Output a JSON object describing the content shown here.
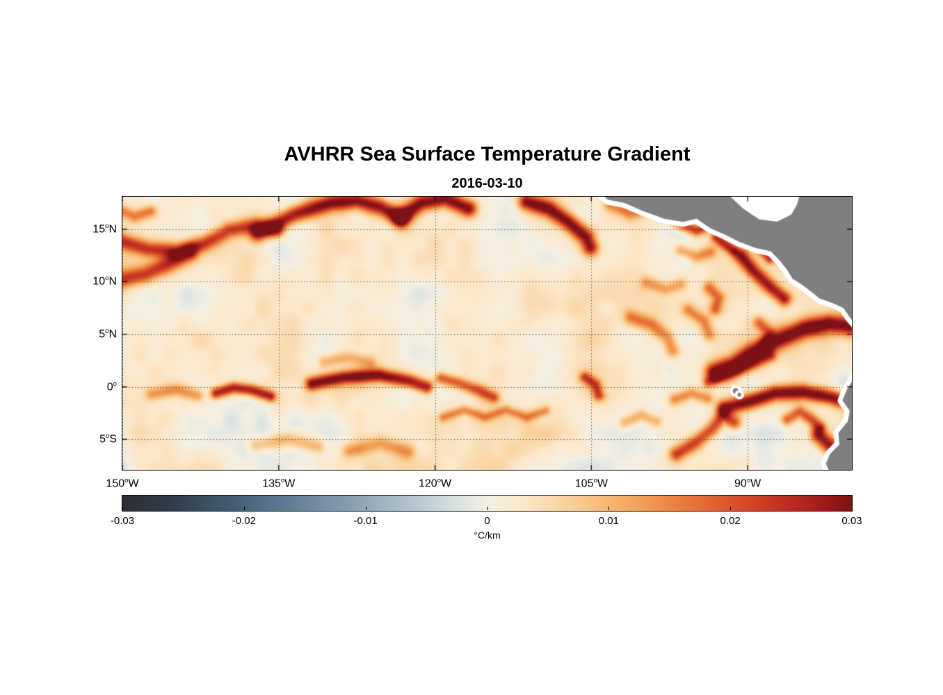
{
  "chart": {
    "title": "AVHRR Sea Surface Temperature Gradient",
    "subtitle": "2016-03-10"
  },
  "colorbar": {
    "unit": "°C/km",
    "min": -0.03,
    "max": 0.03,
    "ticks": [
      {
        "value": -0.03,
        "label": "-0.03"
      },
      {
        "value": -0.02,
        "label": "-0.02"
      },
      {
        "value": -0.01,
        "label": "-0.01"
      },
      {
        "value": 0,
        "label": "0"
      },
      {
        "value": 0.01,
        "label": "0.01"
      },
      {
        "value": 0.02,
        "label": "0.02"
      },
      {
        "value": 0.03,
        "label": "0.03"
      }
    ],
    "colormap": [
      [
        0.0,
        "#2f2f34"
      ],
      [
        0.07,
        "#333d4b"
      ],
      [
        0.14,
        "#40586f"
      ],
      [
        0.21,
        "#5a7591"
      ],
      [
        0.3,
        "#8199ad"
      ],
      [
        0.38,
        "#aabdc9"
      ],
      [
        0.45,
        "#d3dee1"
      ],
      [
        0.5,
        "#f4efe2"
      ],
      [
        0.55,
        "#fbe7c9"
      ],
      [
        0.62,
        "#f9cd95"
      ],
      [
        0.69,
        "#f5ab62"
      ],
      [
        0.76,
        "#eb8140"
      ],
      [
        0.83,
        "#dc562c"
      ],
      [
        0.9,
        "#c33123"
      ],
      [
        0.96,
        "#a01b1b"
      ],
      [
        1.0,
        "#7c1216"
      ]
    ]
  },
  "chart_data": {
    "type": "heatmap",
    "title": "AVHRR Sea Surface Temperature Gradient",
    "subtitle": "2016-03-10",
    "xlabel": "",
    "ylabel": "",
    "units": "°C/km",
    "value_range": [
      -0.03,
      0.03
    ],
    "xlim": [
      -150,
      -80
    ],
    "ylim": [
      -7.9,
      18.1
    ],
    "xticks": [
      {
        "value": -150,
        "deg": "150",
        "hemi": "W"
      },
      {
        "value": -135,
        "deg": "135",
        "hemi": "W"
      },
      {
        "value": -120,
        "deg": "120",
        "hemi": "W"
      },
      {
        "value": -105,
        "deg": "105",
        "hemi": "W"
      },
      {
        "value": -90,
        "deg": "90",
        "hemi": "W"
      }
    ],
    "yticks": [
      {
        "value": 15,
        "deg": "15",
        "hemi": "N"
      },
      {
        "value": 10,
        "deg": "10",
        "hemi": "N"
      },
      {
        "value": 5,
        "deg": "5",
        "hemi": "N"
      },
      {
        "value": 0,
        "deg": "0",
        "hemi": ""
      },
      {
        "value": -5,
        "deg": "5",
        "hemi": "S"
      }
    ],
    "grid": {
      "show": true,
      "style": "dotted",
      "color": "rgba(60,60,60,0.85)"
    },
    "background_value": 0.0018,
    "noise": {
      "amplitude": 0.0038,
      "scale_deg": 4.2,
      "amplitude2": 0.0016,
      "scale2_deg": 1.5,
      "seed": 7
    },
    "fronts": [
      {
        "path": [
          [
            -150.5,
            16.9
          ],
          [
            -148.8,
            16.2
          ],
          [
            -147.3,
            16.7
          ]
        ],
        "width_deg": 0.6,
        "peak": 0.014
      },
      {
        "path": [
          [
            -150.3,
            13.9
          ],
          [
            -147.5,
            13.1
          ],
          [
            -144.8,
            12.9
          ],
          [
            -142.2,
            13.6
          ],
          [
            -139.8,
            14.9
          ],
          [
            -137.2,
            15.4
          ],
          [
            -135.2,
            14.9
          ]
        ],
        "width_deg": 0.75,
        "peak": 0.02
      },
      {
        "path": [
          [
            -150.3,
            10.2
          ],
          [
            -147.8,
            10.7
          ],
          [
            -145.6,
            11.7
          ],
          [
            -143.6,
            12.7
          ]
        ],
        "width_deg": 0.85,
        "peak": 0.021
      },
      {
        "path": [
          [
            -137.0,
            14.6
          ],
          [
            -133.5,
            16.4
          ],
          [
            -130.0,
            17.5
          ],
          [
            -127.5,
            17.7
          ],
          [
            -125.2,
            17.1
          ],
          [
            -123.3,
            16.1
          ]
        ],
        "width_deg": 0.8,
        "peak": 0.027
      },
      {
        "path": [
          [
            -123.3,
            16.1
          ],
          [
            -121.3,
            17.5
          ],
          [
            -119.0,
            17.9
          ],
          [
            -116.8,
            17.0
          ]
        ],
        "width_deg": 0.8,
        "peak": 0.028
      },
      {
        "path": [
          [
            -111.2,
            17.6
          ],
          [
            -109.0,
            16.9
          ],
          [
            -107.2,
            15.7
          ],
          [
            -105.5,
            14.2
          ],
          [
            -105.1,
            13.3
          ]
        ],
        "width_deg": 0.8,
        "peak": 0.029
      },
      {
        "path": [
          [
            -103.2,
            17.3
          ],
          [
            -101.2,
            16.5
          ],
          [
            -99.6,
            16.9
          ]
        ],
        "width_deg": 0.6,
        "peak": 0.012
      },
      {
        "path": [
          [
            -97.6,
            16.3
          ],
          [
            -96.2,
            15.4
          ],
          [
            -94.9,
            14.9
          ],
          [
            -93.9,
            15.3
          ]
        ],
        "width_deg": 0.6,
        "peak": 0.024
      },
      {
        "path": [
          [
            -93.0,
            14.2
          ],
          [
            -92.2,
            13.6
          ],
          [
            -91.4,
            13.0
          ]
        ],
        "width_deg": 0.55,
        "peak": 0.022
      },
      {
        "path": [
          [
            -90.6,
            12.4
          ],
          [
            -89.4,
            11.0
          ],
          [
            -87.8,
            9.5
          ],
          [
            -86.5,
            8.4
          ]
        ],
        "width_deg": 0.7,
        "peak": 0.026
      },
      {
        "path": [
          [
            -88.6,
            13.0
          ],
          [
            -87.9,
            12.2
          ]
        ],
        "width_deg": 0.5,
        "peak": 0.02
      },
      {
        "path": [
          [
            -93.2,
            1.4
          ],
          [
            -91.4,
            2.1
          ],
          [
            -89.4,
            3.3
          ],
          [
            -87.0,
            4.5
          ],
          [
            -84.6,
            5.5
          ],
          [
            -82.2,
            6.0
          ],
          [
            -80.3,
            5.8
          ]
        ],
        "width_deg": 0.9,
        "peak": 0.03
      },
      {
        "path": [
          [
            -93.8,
            0.4
          ],
          [
            -91.8,
            1.1
          ],
          [
            -89.8,
            2.0
          ],
          [
            -87.8,
            2.9
          ]
        ],
        "width_deg": 0.55,
        "peak": 0.016
      },
      {
        "path": [
          [
            -92.2,
            -2.0
          ],
          [
            -89.8,
            -1.4
          ],
          [
            -87.4,
            -0.6
          ],
          [
            -84.6,
            -0.5
          ],
          [
            -82.0,
            -1.0
          ],
          [
            -80.3,
            -1.5
          ]
        ],
        "width_deg": 0.75,
        "peak": 0.03
      },
      {
        "path": [
          [
            -96.8,
            -6.4
          ],
          [
            -95.0,
            -5.3
          ],
          [
            -93.4,
            -4.0
          ],
          [
            -92.4,
            -2.8
          ],
          [
            -91.3,
            -3.4
          ]
        ],
        "width_deg": 0.7,
        "peak": 0.021
      },
      {
        "path": [
          [
            -83.2,
            -4.6
          ],
          [
            -82.0,
            -5.7
          ],
          [
            -81.0,
            -6.8
          ],
          [
            -80.4,
            -7.7
          ]
        ],
        "width_deg": 0.8,
        "peak": 0.028
      },
      {
        "path": [
          [
            -86.2,
            -3.1
          ],
          [
            -85.0,
            -2.4
          ],
          [
            -84.0,
            -3.0
          ],
          [
            -83.1,
            -3.8
          ]
        ],
        "width_deg": 0.6,
        "peak": 0.018
      },
      {
        "path": [
          [
            -131.8,
            0.3
          ],
          [
            -128.8,
            0.9
          ],
          [
            -125.3,
            1.1
          ],
          [
            -122.3,
            0.5
          ],
          [
            -120.8,
            0.0
          ]
        ],
        "width_deg": 0.65,
        "peak": 0.028
      },
      {
        "path": [
          [
            -141.0,
            -0.6
          ],
          [
            -139.3,
            -0.1
          ],
          [
            -137.7,
            -0.3
          ],
          [
            -135.8,
            -0.9
          ]
        ],
        "width_deg": 0.55,
        "peak": 0.025
      },
      {
        "path": [
          [
            -119.4,
            0.8
          ],
          [
            -117.6,
            0.3
          ],
          [
            -115.7,
            -0.4
          ],
          [
            -114.4,
            -1.0
          ]
        ],
        "width_deg": 0.6,
        "peak": 0.019
      },
      {
        "path": [
          [
            -119.2,
            -2.9
          ],
          [
            -117.2,
            -2.2
          ],
          [
            -115.2,
            -2.9
          ],
          [
            -113.2,
            -2.2
          ],
          [
            -111.2,
            -2.9
          ],
          [
            -109.4,
            -2.3
          ]
        ],
        "width_deg": 0.45,
        "peak": 0.012
      },
      {
        "path": [
          [
            -105.6,
            0.9
          ],
          [
            -104.6,
            0.2
          ],
          [
            -104.3,
            -0.8
          ]
        ],
        "width_deg": 0.55,
        "peak": 0.019
      },
      {
        "path": [
          [
            -147.2,
            -0.7
          ],
          [
            -144.8,
            -0.3
          ],
          [
            -142.8,
            -0.8
          ]
        ],
        "width_deg": 0.6,
        "peak": 0.011
      },
      {
        "path": [
          [
            -137.2,
            -5.6
          ],
          [
            -134.2,
            -5.0
          ],
          [
            -131.2,
            -5.7
          ]
        ],
        "width_deg": 0.7,
        "peak": 0.01
      },
      {
        "path": [
          [
            -128.2,
            -6.1
          ],
          [
            -125.2,
            -5.4
          ],
          [
            -122.6,
            -6.2
          ]
        ],
        "width_deg": 0.7,
        "peak": 0.01
      },
      {
        "path": [
          [
            -130.6,
            2.4
          ],
          [
            -128.2,
            2.8
          ],
          [
            -126.2,
            2.3
          ]
        ],
        "width_deg": 0.6,
        "peak": 0.009
      },
      {
        "path": [
          [
            -101.2,
            6.6
          ],
          [
            -99.2,
            5.9
          ],
          [
            -97.7,
            4.7
          ],
          [
            -97.2,
            3.5
          ]
        ],
        "width_deg": 0.7,
        "peak": 0.014
      },
      {
        "path": [
          [
            -95.7,
            7.3
          ],
          [
            -94.2,
            6.3
          ],
          [
            -93.7,
            5.0
          ]
        ],
        "width_deg": 0.6,
        "peak": 0.012
      },
      {
        "path": [
          [
            -99.7,
            9.9
          ],
          [
            -97.9,
            9.3
          ],
          [
            -96.5,
            9.7
          ]
        ],
        "width_deg": 0.6,
        "peak": 0.01
      },
      {
        "path": [
          [
            -93.7,
            9.4
          ],
          [
            -92.8,
            8.5
          ],
          [
            -93.1,
            7.4
          ]
        ],
        "width_deg": 0.6,
        "peak": 0.015
      },
      {
        "path": [
          [
            -88.9,
            6.1
          ],
          [
            -88.0,
            5.2
          ],
          [
            -88.3,
            4.1
          ]
        ],
        "width_deg": 0.6,
        "peak": 0.014
      },
      {
        "path": [
          [
            -97.0,
            -1.2
          ],
          [
            -95.4,
            -0.6
          ],
          [
            -93.9,
            -1.1
          ]
        ],
        "width_deg": 0.6,
        "peak": 0.013
      },
      {
        "path": [
          [
            -101.8,
            -3.4
          ],
          [
            -100.2,
            -2.7
          ],
          [
            -98.8,
            -3.3
          ]
        ],
        "width_deg": 0.6,
        "peak": 0.011
      },
      {
        "path": [
          [
            -96.4,
            13.0
          ],
          [
            -94.9,
            12.4
          ],
          [
            -93.6,
            12.8
          ]
        ],
        "width_deg": 0.6,
        "peak": 0.012
      }
    ],
    "land": {
      "color": "#7f7f7f",
      "coast_halo": "#ffffff",
      "polygons": [
        [
          [
            -104.3,
            18.6
          ],
          [
            -103.4,
            17.8
          ],
          [
            -101.8,
            17.5
          ],
          [
            -100.2,
            16.8
          ],
          [
            -98.0,
            16.0
          ],
          [
            -96.2,
            15.7
          ],
          [
            -94.9,
            16.0
          ],
          [
            -93.6,
            15.1
          ],
          [
            -92.2,
            14.5
          ],
          [
            -90.8,
            13.8
          ],
          [
            -89.2,
            13.2
          ],
          [
            -87.8,
            12.9
          ],
          [
            -86.9,
            12.0
          ],
          [
            -86.2,
            11.1
          ],
          [
            -85.7,
            10.3
          ],
          [
            -84.9,
            9.8
          ],
          [
            -84.1,
            9.2
          ],
          [
            -83.1,
            8.4
          ],
          [
            -81.9,
            8.0
          ],
          [
            -80.8,
            7.5
          ],
          [
            -80.2,
            6.6
          ],
          [
            -79.3,
            5.6
          ],
          [
            -78.0,
            5.0
          ],
          [
            -76.0,
            5.0
          ],
          [
            -76.0,
            19.0
          ],
          [
            -104.3,
            19.0
          ]
        ],
        [
          [
            -79.8,
            0.8
          ],
          [
            -80.5,
            -0.3
          ],
          [
            -80.9,
            -1.3
          ],
          [
            -80.2,
            -2.3
          ],
          [
            -80.4,
            -3.3
          ],
          [
            -81.3,
            -4.4
          ],
          [
            -81.2,
            -5.5
          ],
          [
            -82.1,
            -6.4
          ],
          [
            -82.5,
            -7.3
          ],
          [
            -82.0,
            -8.4
          ],
          [
            -76.0,
            -8.4
          ],
          [
            -76.0,
            1.5
          ]
        ]
      ],
      "white_patches": [
        [
          [
            -91.8,
            18.6
          ],
          [
            -90.3,
            17.2
          ],
          [
            -88.8,
            16.2
          ],
          [
            -87.2,
            16.0
          ],
          [
            -86.0,
            16.6
          ],
          [
            -85.5,
            17.5
          ],
          [
            -85.2,
            18.6
          ]
        ]
      ],
      "islands": [
        {
          "lon": -91.15,
          "lat": -0.4,
          "r_deg": 0.28
        },
        {
          "lon": -90.8,
          "lat": -0.75,
          "r_deg": 0.18
        }
      ]
    }
  }
}
